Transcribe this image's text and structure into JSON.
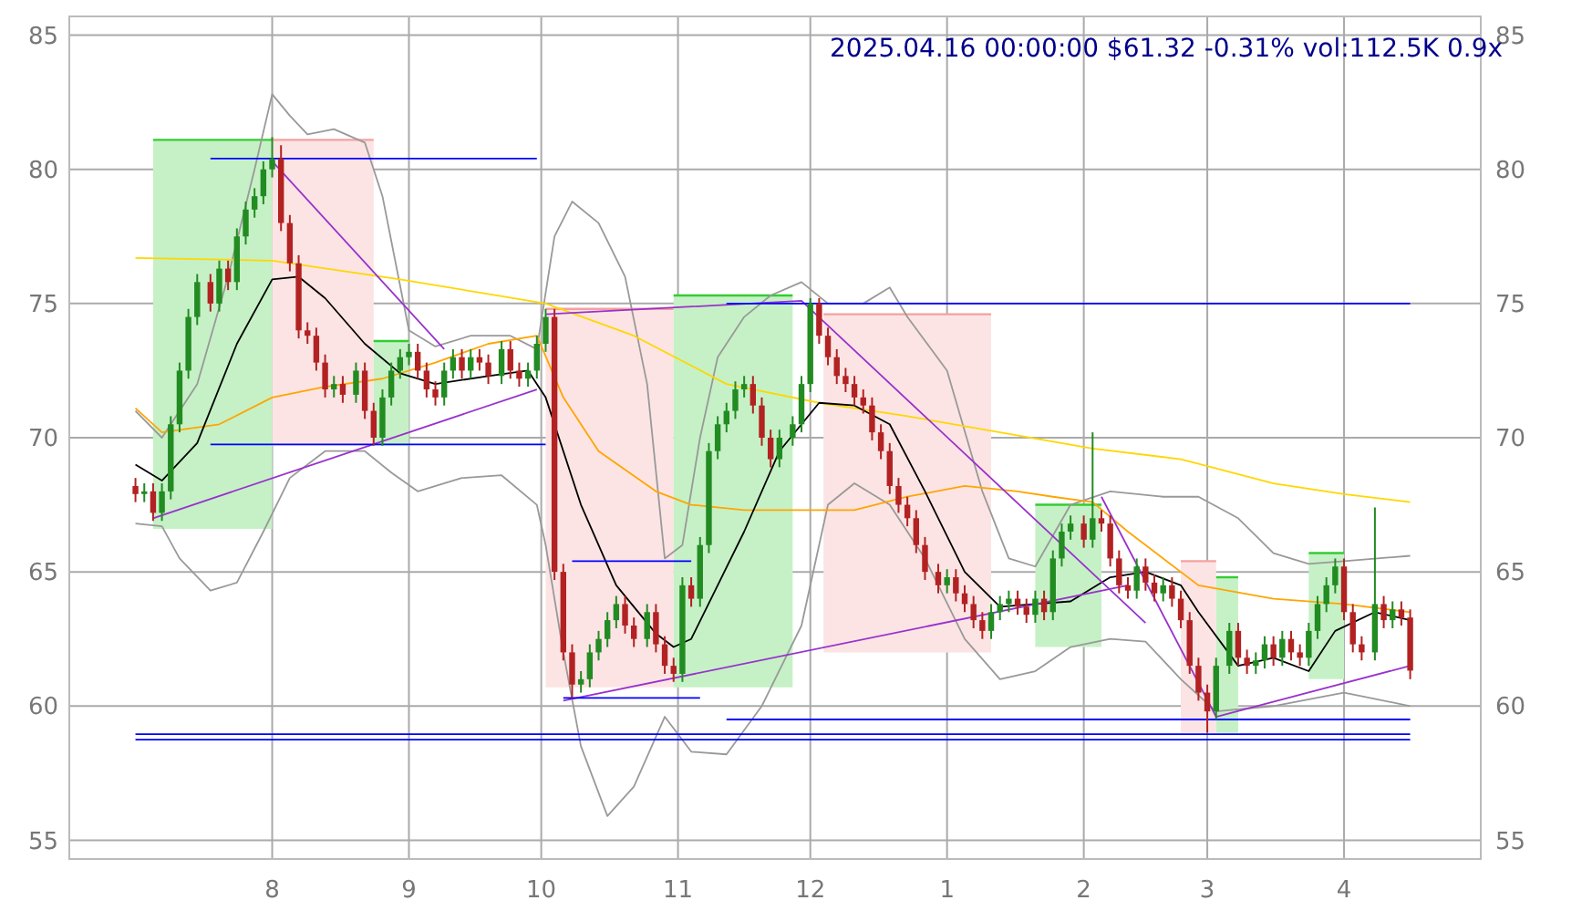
{
  "chart_data": {
    "type": "candlestick",
    "title": "2025.04.16 00:00:00 $61.32 -0.31% vol:112.5K 0.9x",
    "xlim": [
      "2024-06-16",
      "2025-05-02"
    ],
    "xticks": [
      {
        "value": "2024-08-01",
        "label": "8"
      },
      {
        "value": "2024-09-01",
        "label": "9"
      },
      {
        "value": "2024-10-01",
        "label": "10"
      },
      {
        "value": "2024-11-01",
        "label": "11"
      },
      {
        "value": "2024-12-01",
        "label": "12"
      },
      {
        "value": "2025-01-01",
        "label": "1"
      },
      {
        "value": "2025-02-01",
        "label": "2"
      },
      {
        "value": "2025-03-01",
        "label": "3"
      },
      {
        "value": "2025-04-01",
        "label": "4"
      }
    ],
    "ylim": [
      54.3,
      85.7
    ],
    "yticks": [
      55,
      60,
      65,
      70,
      75,
      80,
      85
    ],
    "y2lim": [
      54.3,
      85.7
    ],
    "y2ticks": [
      55,
      60,
      65,
      70,
      75,
      80,
      85
    ],
    "grid": true,
    "x": [
      "2024-07-01",
      "2024-07-03",
      "2024-07-05",
      "2024-07-07",
      "2024-07-09",
      "2024-07-11",
      "2024-07-13",
      "2024-07-15",
      "2024-07-18",
      "2024-07-20",
      "2024-07-22",
      "2024-07-24",
      "2024-07-26",
      "2024-07-28",
      "2024-07-30",
      "2024-08-01",
      "2024-08-03",
      "2024-08-05",
      "2024-08-07",
      "2024-08-09",
      "2024-08-11",
      "2024-08-13",
      "2024-08-15",
      "2024-08-17",
      "2024-08-20",
      "2024-08-22",
      "2024-08-24",
      "2024-08-26",
      "2024-08-28",
      "2024-08-30",
      "2024-09-01",
      "2024-09-03",
      "2024-09-05",
      "2024-09-07",
      "2024-09-09",
      "2024-09-11",
      "2024-09-13",
      "2024-09-15",
      "2024-09-17",
      "2024-09-19",
      "2024-09-22",
      "2024-09-24",
      "2024-09-26",
      "2024-09-28",
      "2024-09-30",
      "2024-10-02",
      "2024-10-04",
      "2024-10-06",
      "2024-10-08",
      "2024-10-10",
      "2024-10-12",
      "2024-10-14",
      "2024-10-16",
      "2024-10-18",
      "2024-10-20",
      "2024-10-22",
      "2024-10-25",
      "2024-10-27",
      "2024-10-29",
      "2024-10-31",
      "2024-11-02",
      "2024-11-04",
      "2024-11-06",
      "2024-11-08",
      "2024-11-10",
      "2024-11-12",
      "2024-11-14",
      "2024-11-16",
      "2024-11-18",
      "2024-11-20",
      "2024-11-22",
      "2024-11-24",
      "2024-11-27",
      "2024-11-29",
      "2024-12-01",
      "2024-12-03",
      "2024-12-05",
      "2024-12-07",
      "2024-12-09",
      "2024-12-11",
      "2024-12-13",
      "2024-12-15",
      "2024-12-17",
      "2024-12-19",
      "2024-12-21",
      "2024-12-23",
      "2024-12-25",
      "2024-12-27",
      "2024-12-30",
      "2025-01-01",
      "2025-01-03",
      "2025-01-05",
      "2025-01-07",
      "2025-01-09",
      "2025-01-11",
      "2025-01-13",
      "2025-01-15",
      "2025-01-17",
      "2025-01-19",
      "2025-01-21",
      "2025-01-23",
      "2025-01-25",
      "2025-01-27",
      "2025-01-29",
      "2025-02-01",
      "2025-02-03",
      "2025-02-05",
      "2025-02-07",
      "2025-02-09",
      "2025-02-11",
      "2025-02-13",
      "2025-02-15",
      "2025-02-17",
      "2025-02-19",
      "2025-02-21",
      "2025-02-23",
      "2025-02-25",
      "2025-02-27",
      "2025-03-01",
      "2025-03-03",
      "2025-03-06",
      "2025-03-08",
      "2025-03-10",
      "2025-03-12",
      "2025-03-14",
      "2025-03-16",
      "2025-03-18",
      "2025-03-20",
      "2025-03-22",
      "2025-03-24",
      "2025-03-26",
      "2025-03-28",
      "2025-03-30",
      "2025-04-01",
      "2025-04-03",
      "2025-04-05",
      "2025-04-08",
      "2025-04-10",
      "2025-04-12",
      "2025-04-14",
      "2025-04-16"
    ],
    "ohlc": [
      [
        68.2,
        68.5,
        67.6,
        67.9
      ],
      [
        67.9,
        68.3,
        67.6,
        68.0
      ],
      [
        68.0,
        68.3,
        66.9,
        67.2
      ],
      [
        67.2,
        68.3,
        66.9,
        68.0
      ],
      [
        68.0,
        70.8,
        67.7,
        70.5
      ],
      [
        70.5,
        72.8,
        70.2,
        72.5
      ],
      [
        72.5,
        74.8,
        72.2,
        74.5
      ],
      [
        74.5,
        76.1,
        74.2,
        75.8
      ],
      [
        75.8,
        76.1,
        74.7,
        75.0
      ],
      [
        75.0,
        76.6,
        74.7,
        76.3
      ],
      [
        76.3,
        76.6,
        75.5,
        75.8
      ],
      [
        75.8,
        77.8,
        75.5,
        77.5
      ],
      [
        77.5,
        78.8,
        77.2,
        78.5
      ],
      [
        78.5,
        79.3,
        78.2,
        79.0
      ],
      [
        79.0,
        80.3,
        78.7,
        80.0
      ],
      [
        80.0,
        81.2,
        79.7,
        80.4
      ],
      [
        80.4,
        80.9,
        77.7,
        78.0
      ],
      [
        78.0,
        78.3,
        76.2,
        76.5
      ],
      [
        76.5,
        76.8,
        73.7,
        74.0
      ],
      [
        74.0,
        74.3,
        73.5,
        73.8
      ],
      [
        73.8,
        74.1,
        72.5,
        72.8
      ],
      [
        72.8,
        73.1,
        71.5,
        71.8
      ],
      [
        71.8,
        72.3,
        71.5,
        72.0
      ],
      [
        72.0,
        72.3,
        71.3,
        71.6
      ],
      [
        71.6,
        72.8,
        71.3,
        72.5
      ],
      [
        72.5,
        72.8,
        70.7,
        71.0
      ],
      [
        71.0,
        71.3,
        69.7,
        70.0
      ],
      [
        70.0,
        71.8,
        69.7,
        71.5
      ],
      [
        71.5,
        72.8,
        71.2,
        72.5
      ],
      [
        72.5,
        73.3,
        72.2,
        73.0
      ],
      [
        73.0,
        73.5,
        72.7,
        73.2
      ],
      [
        73.2,
        73.5,
        72.2,
        72.5
      ],
      [
        72.5,
        72.8,
        71.5,
        71.8
      ],
      [
        71.8,
        72.1,
        71.2,
        71.5
      ],
      [
        71.5,
        72.8,
        71.2,
        72.5
      ],
      [
        72.5,
        73.3,
        72.2,
        73.0
      ],
      [
        73.0,
        73.3,
        72.2,
        72.5
      ],
      [
        72.5,
        73.3,
        72.2,
        73.0
      ],
      [
        73.0,
        73.3,
        72.5,
        72.8
      ],
      [
        72.8,
        73.1,
        72.0,
        72.3
      ],
      [
        72.3,
        73.6,
        72.0,
        73.3
      ],
      [
        73.3,
        73.6,
        72.2,
        72.5
      ],
      [
        72.5,
        72.8,
        71.9,
        72.2
      ],
      [
        72.2,
        72.8,
        71.9,
        72.5
      ],
      [
        72.5,
        73.8,
        72.2,
        73.5
      ],
      [
        73.5,
        74.8,
        73.2,
        74.5
      ],
      [
        74.5,
        74.8,
        64.7,
        65.0
      ],
      [
        65.0,
        65.3,
        61.7,
        62.0
      ],
      [
        62.0,
        62.3,
        60.3,
        60.8
      ],
      [
        60.8,
        61.3,
        60.5,
        61.0
      ],
      [
        61.0,
        62.3,
        60.7,
        62.0
      ],
      [
        62.0,
        62.8,
        61.7,
        62.5
      ],
      [
        62.5,
        63.5,
        62.2,
        63.2
      ],
      [
        63.2,
        64.1,
        62.9,
        63.8
      ],
      [
        63.8,
        64.1,
        62.7,
        63.0
      ],
      [
        63.0,
        63.3,
        62.2,
        62.5
      ],
      [
        62.5,
        63.8,
        62.2,
        63.5
      ],
      [
        63.5,
        63.8,
        62.0,
        62.3
      ],
      [
        62.3,
        62.6,
        61.2,
        61.5
      ],
      [
        61.5,
        61.8,
        60.9,
        61.2
      ],
      [
        61.2,
        64.8,
        60.9,
        64.5
      ],
      [
        64.5,
        64.8,
        63.7,
        64.0
      ],
      [
        64.0,
        66.3,
        63.7,
        66.0
      ],
      [
        66.0,
        69.8,
        65.7,
        69.5
      ],
      [
        69.5,
        70.8,
        69.2,
        70.5
      ],
      [
        70.5,
        71.3,
        70.2,
        71.0
      ],
      [
        71.0,
        72.1,
        70.7,
        71.8
      ],
      [
        71.8,
        72.3,
        71.5,
        72.0
      ],
      [
        72.0,
        72.3,
        70.9,
        71.2
      ],
      [
        71.2,
        71.5,
        69.7,
        70.0
      ],
      [
        70.0,
        70.3,
        68.9,
        69.2
      ],
      [
        69.2,
        70.3,
        68.9,
        70.0
      ],
      [
        70.0,
        70.8,
        69.7,
        70.5
      ],
      [
        70.5,
        72.3,
        70.2,
        72.0
      ],
      [
        72.0,
        75.2,
        71.7,
        75.0
      ],
      [
        75.0,
        75.2,
        73.5,
        73.8
      ],
      [
        73.8,
        74.1,
        72.7,
        73.0
      ],
      [
        73.0,
        73.3,
        72.0,
        72.3
      ],
      [
        72.3,
        72.6,
        71.7,
        72.0
      ],
      [
        72.0,
        72.3,
        71.2,
        71.5
      ],
      [
        71.5,
        71.8,
        70.9,
        71.2
      ],
      [
        71.2,
        71.5,
        69.9,
        70.2
      ],
      [
        70.2,
        70.5,
        69.2,
        69.5
      ],
      [
        69.5,
        69.8,
        67.9,
        68.2
      ],
      [
        68.2,
        68.5,
        67.2,
        67.5
      ],
      [
        67.5,
        67.8,
        66.7,
        67.0
      ],
      [
        67.0,
        67.3,
        65.7,
        66.0
      ],
      [
        66.0,
        66.3,
        64.7,
        65.0
      ],
      [
        65.0,
        65.3,
        64.2,
        64.5
      ],
      [
        64.5,
        65.1,
        64.2,
        64.8
      ],
      [
        64.8,
        65.1,
        63.9,
        64.2
      ],
      [
        64.2,
        64.5,
        63.5,
        63.8
      ],
      [
        63.8,
        64.1,
        62.9,
        63.2
      ],
      [
        63.2,
        63.5,
        62.5,
        62.8
      ],
      [
        62.8,
        63.8,
        62.5,
        63.5
      ],
      [
        63.5,
        64.1,
        63.2,
        63.8
      ],
      [
        63.8,
        64.3,
        63.5,
        64.0
      ],
      [
        64.0,
        64.3,
        63.4,
        63.7
      ],
      [
        63.7,
        64.0,
        63.1,
        63.4
      ],
      [
        63.4,
        64.3,
        63.1,
        64.0
      ],
      [
        64.0,
        64.3,
        63.2,
        63.5
      ],
      [
        63.5,
        65.8,
        63.2,
        65.5
      ],
      [
        65.5,
        66.8,
        65.2,
        66.5
      ],
      [
        66.5,
        67.1,
        66.2,
        66.8
      ],
      [
        66.8,
        67.1,
        65.9,
        66.2
      ],
      [
        66.2,
        70.2,
        65.9,
        67.0
      ],
      [
        67.0,
        67.3,
        66.5,
        66.8
      ],
      [
        66.8,
        67.1,
        65.2,
        65.5
      ],
      [
        65.5,
        65.8,
        64.2,
        64.5
      ],
      [
        64.5,
        64.8,
        64.0,
        64.3
      ],
      [
        64.3,
        65.5,
        64.0,
        65.2
      ],
      [
        65.2,
        65.5,
        64.3,
        64.6
      ],
      [
        64.6,
        64.9,
        63.9,
        64.2
      ],
      [
        64.2,
        64.8,
        63.9,
        64.5
      ],
      [
        64.5,
        64.8,
        63.7,
        64.0
      ],
      [
        64.0,
        64.3,
        62.9,
        63.2
      ],
      [
        63.2,
        63.5,
        61.2,
        61.5
      ],
      [
        61.5,
        61.8,
        60.2,
        60.5
      ],
      [
        60.5,
        60.8,
        59.0,
        59.8
      ],
      [
        59.8,
        61.8,
        59.5,
        61.5
      ],
      [
        61.5,
        63.1,
        61.2,
        62.8
      ],
      [
        62.8,
        63.1,
        61.5,
        61.8
      ],
      [
        61.8,
        62.1,
        61.2,
        61.5
      ],
      [
        61.5,
        62.0,
        61.2,
        61.7
      ],
      [
        61.7,
        62.6,
        61.4,
        62.3
      ],
      [
        62.3,
        62.6,
        61.5,
        61.8
      ],
      [
        61.8,
        62.8,
        61.5,
        62.5
      ],
      [
        62.5,
        62.8,
        61.7,
        62.0
      ],
      [
        62.0,
        62.3,
        61.5,
        61.8
      ],
      [
        61.8,
        63.1,
        61.5,
        62.8
      ],
      [
        62.8,
        64.1,
        62.5,
        63.8
      ],
      [
        63.8,
        64.8,
        63.5,
        64.5
      ],
      [
        64.5,
        65.5,
        64.2,
        65.2
      ],
      [
        65.2,
        65.5,
        63.2,
        63.5
      ],
      [
        63.5,
        63.8,
        62.0,
        62.3
      ],
      [
        62.3,
        62.6,
        61.7,
        62.0
      ],
      [
        62.0,
        67.4,
        61.7,
        63.8
      ],
      [
        63.8,
        64.1,
        62.9,
        63.2
      ],
      [
        63.2,
        63.9,
        62.9,
        63.6
      ],
      [
        63.6,
        63.9,
        63.0,
        63.3
      ],
      [
        63.3,
        63.6,
        61.0,
        61.32
      ]
    ],
    "colors": [
      "#b22222",
      "#228b22",
      "#b22222",
      "#228b22",
      "#228b22",
      "#228b22",
      "#228b22",
      "#228b22",
      "#b22222",
      "#228b22",
      "#b22222",
      "#228b22",
      "#228b22",
      "#228b22",
      "#228b22",
      "#228b22",
      "#b22222",
      "#b22222",
      "#b22222",
      "#b22222",
      "#b22222",
      "#b22222",
      "#228b22",
      "#b22222",
      "#228b22",
      "#b22222",
      "#b22222",
      "#228b22",
      "#228b22",
      "#228b22",
      "#228b22",
      "#b22222",
      "#b22222",
      "#b22222",
      "#228b22",
      "#228b22",
      "#b22222",
      "#228b22",
      "#b22222",
      "#b22222",
      "#228b22",
      "#b22222",
      "#b22222",
      "#228b22",
      "#228b22",
      "#228b22",
      "#b22222",
      "#b22222",
      "#b22222",
      "#228b22",
      "#228b22",
      "#228b22",
      "#228b22",
      "#228b22",
      "#b22222",
      "#b22222",
      "#228b22",
      "#b22222",
      "#b22222",
      "#b22222",
      "#228b22",
      "#b22222",
      "#228b22",
      "#228b22",
      "#228b22",
      "#228b22",
      "#228b22",
      "#228b22",
      "#b22222",
      "#b22222",
      "#b22222",
      "#228b22",
      "#228b22",
      "#228b22",
      "#228b22",
      "#b22222",
      "#b22222",
      "#b22222",
      "#b22222",
      "#b22222",
      "#b22222",
      "#b22222",
      "#b22222",
      "#b22222",
      "#b22222",
      "#b22222",
      "#b22222",
      "#b22222",
      "#b22222",
      "#228b22",
      "#b22222",
      "#b22222",
      "#b22222",
      "#b22222",
      "#228b22",
      "#228b22",
      "#228b22",
      "#b22222",
      "#b22222",
      "#228b22",
      "#b22222",
      "#228b22",
      "#228b22",
      "#228b22",
      "#b22222",
      "#228b22",
      "#b22222",
      "#b22222",
      "#b22222",
      "#b22222",
      "#228b22",
      "#b22222",
      "#b22222",
      "#228b22",
      "#b22222",
      "#b22222",
      "#b22222",
      "#b22222",
      "#b22222",
      "#228b22",
      "#228b22",
      "#b22222",
      "#b22222",
      "#228b22",
      "#228b22",
      "#b22222",
      "#228b22",
      "#b22222",
      "#b22222",
      "#228b22",
      "#228b22",
      "#228b22",
      "#228b22",
      "#b22222",
      "#b22222",
      "#b22222",
      "#228b22",
      "#b22222",
      "#228b22",
      "#b22222",
      "#b22222"
    ],
    "series": [
      {
        "type": "line",
        "color": "#33cc33",
        "x": [
          "2024-07-05",
          "2024-08-01"
        ],
        "values": [
          81.1,
          81.1
        ],
        "upper": [
          81.1,
          81.1
        ],
        "lower": [
          66.6,
          66.6
        ]
      },
      {
        "type": "line",
        "color": "#f4a0a0",
        "x": [
          "2024-08-01",
          "2024-08-24"
        ],
        "values": [
          81.1,
          81.1
        ],
        "upper": [
          81.1,
          81.1
        ],
        "lower": [
          69.7,
          69.7
        ]
      },
      {
        "type": "line",
        "color": "#33cc33",
        "x": [
          "2024-08-24",
          "2024-09-01"
        ],
        "values": [
          73.6,
          73.6
        ],
        "upper": [
          73.6,
          73.6
        ],
        "lower": [
          69.7,
          69.7
        ]
      },
      {
        "type": "line",
        "color": "#f4a0a0",
        "x": [
          "2024-10-02",
          "2024-10-31"
        ],
        "values": [
          74.8,
          74.8
        ],
        "upper": [
          74.8,
          74.8
        ],
        "lower": [
          60.7,
          60.7
        ]
      },
      {
        "type": "line",
        "color": "#33cc33",
        "x": [
          "2024-10-31",
          "2024-11-27"
        ],
        "values": [
          75.3,
          75.3
        ],
        "upper": [
          75.3,
          75.3
        ],
        "lower": [
          60.7,
          60.7
        ]
      },
      {
        "type": "line",
        "color": "#f4a0a0",
        "x": [
          "2024-12-04",
          "2025-01-11"
        ],
        "values": [
          74.6,
          74.6
        ],
        "upper": [
          74.6,
          74.6
        ],
        "lower": [
          62.0,
          62.0
        ]
      },
      {
        "type": "line",
        "color": "#33cc33",
        "x": [
          "2025-01-21",
          "2025-02-05"
        ],
        "values": [
          67.5,
          67.5
        ],
        "upper": [
          67.5,
          67.5
        ],
        "lower": [
          62.2,
          62.2
        ]
      },
      {
        "type": "line",
        "color": "#f4a0a0",
        "x": [
          "2025-02-23",
          "2025-03-03"
        ],
        "values": [
          65.4,
          65.4
        ],
        "upper": [
          65.4,
          65.4
        ],
        "lower": [
          59.0,
          59.0
        ]
      },
      {
        "type": "line",
        "color": "#33cc33",
        "x": [
          "2025-03-03",
          "2025-03-08"
        ],
        "values": [
          64.8,
          64.8
        ],
        "upper": [
          64.8,
          64.8
        ],
        "lower": [
          59.0,
          59.0
        ]
      },
      {
        "type": "line",
        "color": "#33cc33",
        "x": [
          "2025-03-24",
          "2025-04-01"
        ],
        "values": [
          65.7,
          65.7
        ],
        "upper": [
          65.7,
          65.7
        ],
        "lower": [
          61.0,
          61.0
        ]
      },
      {
        "type": "line",
        "color": "#999999",
        "x": [
          "2024-07-01",
          "2024-07-07",
          "2024-07-15",
          "2024-07-22",
          "2024-07-28",
          "2024-08-01",
          "2024-08-05",
          "2024-08-09",
          "2024-08-15",
          "2024-08-22",
          "2024-08-26",
          "2024-09-01",
          "2024-09-07",
          "2024-09-15",
          "2024-09-24",
          "2024-09-30",
          "2024-10-04",
          "2024-10-08",
          "2024-10-14",
          "2024-10-20",
          "2024-10-25",
          "2024-10-29",
          "2024-11-02",
          "2024-11-06",
          "2024-11-10",
          "2024-11-16",
          "2024-11-22",
          "2024-11-29",
          "2024-12-05",
          "2024-12-13",
          "2024-12-19",
          "2024-12-23",
          "2025-01-01",
          "2025-01-09",
          "2025-01-15",
          "2025-01-21",
          "2025-01-29",
          "2025-02-07",
          "2025-02-19",
          "2025-02-27",
          "2025-03-08",
          "2025-03-16",
          "2025-03-24",
          "2025-04-01",
          "2025-04-16"
        ],
        "values": [
          71.0,
          70.0,
          72.0,
          76.0,
          80.0,
          82.8,
          82.0,
          81.3,
          81.5,
          81.0,
          79.0,
          74.0,
          73.4,
          73.8,
          73.8,
          73.3,
          77.5,
          78.8,
          78.0,
          76.0,
          72.0,
          65.5,
          66.0,
          70.0,
          73.0,
          74.5,
          75.3,
          75.8,
          75.0,
          75.0,
          75.6,
          74.5,
          72.5,
          68.0,
          65.5,
          65.2,
          67.5,
          68.0,
          67.8,
          67.8,
          67.0,
          65.7,
          65.3,
          65.4,
          65.6
        ]
      },
      {
        "type": "line",
        "color": "#999999",
        "x": [
          "2024-07-01",
          "2024-07-07",
          "2024-07-11",
          "2024-07-18",
          "2024-07-24",
          "2024-07-30",
          "2024-08-05",
          "2024-08-13",
          "2024-08-22",
          "2024-08-28",
          "2024-09-03",
          "2024-09-13",
          "2024-09-22",
          "2024-09-30",
          "2024-10-02",
          "2024-10-06",
          "2024-10-10",
          "2024-10-16",
          "2024-10-22",
          "2024-10-29",
          "2024-11-04",
          "2024-11-12",
          "2024-11-20",
          "2024-11-29",
          "2024-12-05",
          "2024-12-11",
          "2024-12-19",
          "2024-12-27",
          "2025-01-05",
          "2025-01-13",
          "2025-01-21",
          "2025-01-29",
          "2025-02-07",
          "2025-02-15",
          "2025-02-23",
          "2025-03-03",
          "2025-03-16",
          "2025-04-01",
          "2025-04-16"
        ],
        "values": [
          66.8,
          66.7,
          65.5,
          64.3,
          64.6,
          66.5,
          68.5,
          69.5,
          69.5,
          68.7,
          68.0,
          68.5,
          68.6,
          67.5,
          66.0,
          62.0,
          58.5,
          55.9,
          57.0,
          59.6,
          58.3,
          58.2,
          60.0,
          63.0,
          67.5,
          68.3,
          67.5,
          65.5,
          62.5,
          61.0,
          61.3,
          62.2,
          62.5,
          62.4,
          61.0,
          59.8,
          60.0,
          60.5,
          60.0
        ]
      },
      {
        "type": "line",
        "color": "#ffd700",
        "x": [
          "2024-07-01",
          "2024-08-01",
          "2024-08-30",
          "2024-10-02",
          "2024-10-22",
          "2024-11-12",
          "2024-12-03",
          "2024-12-23",
          "2025-01-13",
          "2025-02-03",
          "2025-02-23",
          "2025-03-16",
          "2025-04-01",
          "2025-04-16"
        ],
        "values": [
          76.7,
          76.6,
          75.9,
          75.0,
          73.8,
          72.0,
          71.3,
          70.8,
          70.2,
          69.6,
          69.2,
          68.3,
          67.9,
          67.6
        ]
      },
      {
        "type": "line",
        "color": "#ffa500",
        "x": [
          "2024-07-01",
          "2024-07-07",
          "2024-07-20",
          "2024-08-01",
          "2024-08-13",
          "2024-08-26",
          "2024-09-07",
          "2024-09-19",
          "2024-09-30",
          "2024-10-06",
          "2024-10-14",
          "2024-10-27",
          "2024-11-04",
          "2024-11-16",
          "2024-11-29",
          "2024-12-11",
          "2024-12-23",
          "2025-01-05",
          "2025-01-17",
          "2025-01-25",
          "2025-02-03",
          "2025-02-11",
          "2025-02-19",
          "2025-02-27",
          "2025-03-16",
          "2025-04-01",
          "2025-04-16"
        ],
        "values": [
          71.1,
          70.2,
          70.5,
          71.5,
          71.9,
          72.2,
          72.8,
          73.5,
          73.8,
          71.5,
          69.5,
          68.0,
          67.5,
          67.3,
          67.3,
          67.3,
          67.8,
          68.2,
          68.0,
          67.8,
          67.6,
          66.5,
          65.5,
          64.5,
          64.0,
          63.8,
          63.5
        ]
      },
      {
        "type": "line",
        "color": "#000000",
        "x": [
          "2024-07-01",
          "2024-07-07",
          "2024-07-15",
          "2024-07-24",
          "2024-08-01",
          "2024-08-07",
          "2024-08-13",
          "2024-08-22",
          "2024-08-30",
          "2024-09-07",
          "2024-09-19",
          "2024-09-28",
          "2024-10-02",
          "2024-10-10",
          "2024-10-18",
          "2024-10-27",
          "2024-10-31",
          "2024-11-04",
          "2024-11-10",
          "2024-11-16",
          "2024-11-24",
          "2024-12-03",
          "2024-12-11",
          "2024-12-19",
          "2024-12-27",
          "2025-01-05",
          "2025-01-13",
          "2025-01-21",
          "2025-01-29",
          "2025-02-07",
          "2025-02-15",
          "2025-02-23",
          "2025-02-27",
          "2025-03-08",
          "2025-03-16",
          "2025-03-24",
          "2025-03-30",
          "2025-04-08",
          "2025-04-16"
        ],
        "values": [
          69.0,
          68.4,
          69.8,
          73.5,
          75.9,
          76.0,
          75.2,
          73.5,
          72.4,
          72.0,
          72.3,
          72.5,
          71.5,
          67.5,
          64.5,
          62.7,
          62.2,
          62.5,
          64.5,
          66.5,
          69.5,
          71.3,
          71.2,
          70.5,
          68.0,
          65.0,
          63.7,
          63.8,
          63.9,
          64.8,
          65.0,
          64.5,
          63.5,
          61.5,
          61.8,
          61.3,
          62.8,
          63.5,
          63.2
        ]
      },
      {
        "type": "line",
        "color": "#9932cc",
        "x": [
          "2024-07-05",
          "2024-09-30"
        ],
        "values": [
          67.0,
          71.8
        ]
      },
      {
        "type": "line",
        "color": "#9932cc",
        "x": [
          "2024-08-01",
          "2024-09-09"
        ],
        "values": [
          80.3,
          73.3
        ]
      },
      {
        "type": "line",
        "color": "#9932cc",
        "x": [
          "2024-10-02",
          "2024-11-29",
          "2025-02-15"
        ],
        "values": [
          74.6,
          75.1,
          63.1
        ]
      },
      {
        "type": "line",
        "color": "#9932cc",
        "x": [
          "2024-10-06",
          "2025-02-11"
        ],
        "values": [
          60.2,
          64.5
        ]
      },
      {
        "type": "line",
        "color": "#9932cc",
        "x": [
          "2025-02-05",
          "2025-03-03",
          "2025-04-16"
        ],
        "values": [
          67.8,
          59.6,
          61.5
        ]
      },
      {
        "type": "line",
        "color": "#0000ff",
        "x": [
          "2024-07-18",
          "2024-09-30"
        ],
        "values": [
          80.4,
          80.4
        ]
      },
      {
        "type": "line",
        "color": "#0000ff",
        "x": [
          "2024-07-18",
          "2024-10-02"
        ],
        "values": [
          69.75,
          69.75
        ]
      },
      {
        "type": "line",
        "color": "#0000ff",
        "x": [
          "2024-10-08",
          "2024-11-04"
        ],
        "values": [
          65.4,
          65.4
        ]
      },
      {
        "type": "line",
        "color": "#0000ff",
        "x": [
          "2024-10-06",
          "2024-11-06"
        ],
        "values": [
          60.3,
          60.3
        ]
      },
      {
        "type": "line",
        "color": "#0000ff",
        "x": [
          "2024-11-12",
          "2025-04-16"
        ],
        "values": [
          75.0,
          75.0
        ]
      },
      {
        "type": "line",
        "color": "#0000ff",
        "x": [
          "2024-11-12",
          "2025-04-16"
        ],
        "values": [
          59.5,
          59.5
        ]
      },
      {
        "type": "line",
        "color": "#0000ff",
        "x": [
          "2024-07-01",
          "2025-04-16"
        ],
        "values": [
          58.95,
          58.95
        ]
      },
      {
        "type": "line",
        "color": "#0000ff",
        "x": [
          "2024-07-01",
          "2025-04-16"
        ],
        "values": [
          58.75,
          58.75
        ]
      }
    ]
  }
}
